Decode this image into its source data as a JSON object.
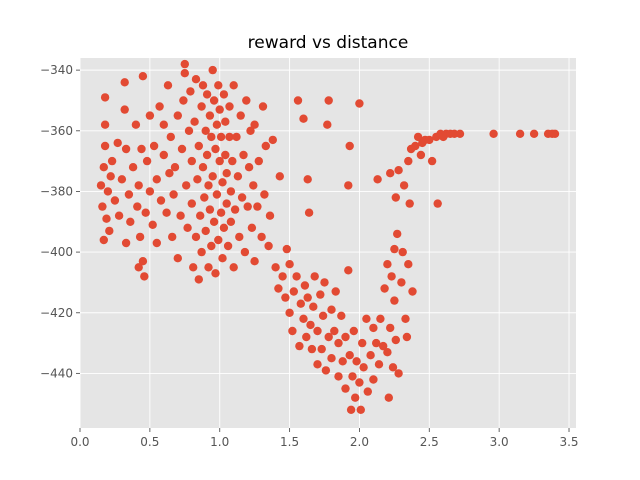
{
  "chart_data": {
    "type": "scatter",
    "title": "reward vs distance",
    "xlabel": "",
    "ylabel": "",
    "xlim": [
      0.0,
      3.55
    ],
    "ylim": [
      -458,
      -336
    ],
    "xticks": [
      0.0,
      0.5,
      1.0,
      1.5,
      2.0,
      2.5,
      3.0,
      3.5
    ],
    "xtick_labels": [
      "0.0",
      "0.5",
      "1.0",
      "1.5",
      "2.0",
      "2.5",
      "3.0",
      "3.5"
    ],
    "yticks": [
      -440,
      -420,
      -400,
      -380,
      -360,
      -340
    ],
    "ytick_labels": [
      "−440",
      "−420",
      "−400",
      "−380",
      "−360",
      "−340"
    ],
    "grid": true,
    "legend": "none",
    "colors": {
      "background": "#e5e5e5",
      "grid": "#ffffff",
      "marker": "#e24a33"
    },
    "series": [
      {
        "name": "",
        "points": [
          [
            0.15,
            -378
          ],
          [
            0.16,
            -385
          ],
          [
            0.17,
            -396
          ],
          [
            0.17,
            -372
          ],
          [
            0.18,
            -349
          ],
          [
            0.18,
            -358
          ],
          [
            0.18,
            -365
          ],
          [
            0.19,
            -389
          ],
          [
            0.2,
            -380
          ],
          [
            0.21,
            -393
          ],
          [
            0.22,
            -375
          ],
          [
            0.23,
            -370
          ],
          [
            0.25,
            -383
          ],
          [
            0.27,
            -364
          ],
          [
            0.28,
            -388
          ],
          [
            0.3,
            -376
          ],
          [
            0.32,
            -344
          ],
          [
            0.32,
            -353
          ],
          [
            0.33,
            -366
          ],
          [
            0.33,
            -397
          ],
          [
            0.35,
            -381
          ],
          [
            0.36,
            -390
          ],
          [
            0.38,
            -372
          ],
          [
            0.4,
            -358
          ],
          [
            0.41,
            -385
          ],
          [
            0.42,
            -405
          ],
          [
            0.42,
            -378
          ],
          [
            0.43,
            -395
          ],
          [
            0.44,
            -366
          ],
          [
            0.45,
            -342
          ],
          [
            0.45,
            -403
          ],
          [
            0.46,
            -408
          ],
          [
            0.47,
            -387
          ],
          [
            0.48,
            -370
          ],
          [
            0.5,
            -355
          ],
          [
            0.5,
            -380
          ],
          [
            0.52,
            -391
          ],
          [
            0.53,
            -365
          ],
          [
            0.55,
            -397
          ],
          [
            0.55,
            -376
          ],
          [
            0.57,
            -352
          ],
          [
            0.58,
            -383
          ],
          [
            0.6,
            -368
          ],
          [
            0.6,
            -358
          ],
          [
            0.62,
            -387
          ],
          [
            0.63,
            -345
          ],
          [
            0.64,
            -374
          ],
          [
            0.65,
            -362
          ],
          [
            0.66,
            -395
          ],
          [
            0.67,
            -381
          ],
          [
            0.68,
            -372
          ],
          [
            0.7,
            -355
          ],
          [
            0.7,
            -402
          ],
          [
            0.72,
            -388
          ],
          [
            0.73,
            -366
          ],
          [
            0.74,
            -350
          ],
          [
            0.75,
            -338
          ],
          [
            0.75,
            -341
          ],
          [
            0.76,
            -378
          ],
          [
            0.77,
            -392
          ],
          [
            0.78,
            -360
          ],
          [
            0.79,
            -347
          ],
          [
            0.8,
            -384
          ],
          [
            0.8,
            -370
          ],
          [
            0.81,
            -405
          ],
          [
            0.82,
            -357
          ],
          [
            0.83,
            -395
          ],
          [
            0.83,
            -343
          ],
          [
            0.84,
            -376
          ],
          [
            0.85,
            -409
          ],
          [
            0.85,
            -365
          ],
          [
            0.86,
            -388
          ],
          [
            0.87,
            -352
          ],
          [
            0.87,
            -400
          ],
          [
            0.88,
            -372
          ],
          [
            0.88,
            -345
          ],
          [
            0.89,
            -382
          ],
          [
            0.9,
            -360
          ],
          [
            0.9,
            -393
          ],
          [
            0.91,
            -368
          ],
          [
            0.91,
            -348
          ],
          [
            0.92,
            -405
          ],
          [
            0.92,
            -378
          ],
          [
            0.93,
            -355
          ],
          [
            0.93,
            -386
          ],
          [
            0.94,
            -362
          ],
          [
            0.94,
            -398
          ],
          [
            0.95,
            -340
          ],
          [
            0.95,
            -375
          ],
          [
            0.96,
            -350
          ],
          [
            0.96,
            -390
          ],
          [
            0.97,
            -366
          ],
          [
            0.97,
            -407
          ],
          [
            0.98,
            -358
          ],
          [
            0.98,
            -381
          ],
          [
            0.99,
            -345
          ],
          [
            0.99,
            -396
          ],
          [
            1.0,
            -370
          ],
          [
            1.0,
            -353
          ],
          [
            1.01,
            -387
          ],
          [
            1.01,
            -362
          ],
          [
            1.02,
            -402
          ],
          [
            1.02,
            -377
          ],
          [
            1.03,
            -348
          ],
          [
            1.03,
            -392
          ],
          [
            1.04,
            -368
          ],
          [
            1.04,
            -357
          ],
          [
            1.05,
            -384
          ],
          [
            1.05,
            -374
          ],
          [
            1.06,
            -398
          ],
          [
            1.07,
            -362
          ],
          [
            1.07,
            -352
          ],
          [
            1.08,
            -380
          ],
          [
            1.08,
            -390
          ],
          [
            1.09,
            -370
          ],
          [
            1.1,
            -405
          ],
          [
            1.1,
            -345
          ],
          [
            1.11,
            -386
          ],
          [
            1.12,
            -362
          ],
          [
            1.13,
            -375
          ],
          [
            1.14,
            -395
          ],
          [
            1.15,
            -355
          ],
          [
            1.16,
            -382
          ],
          [
            1.17,
            -368
          ],
          [
            1.18,
            -400
          ],
          [
            1.19,
            -350
          ],
          [
            1.2,
            -385
          ],
          [
            1.21,
            -372
          ],
          [
            1.22,
            -360
          ],
          [
            1.23,
            -392
          ],
          [
            1.24,
            -378
          ],
          [
            1.25,
            -403
          ],
          [
            1.25,
            -358
          ],
          [
            1.27,
            -385
          ],
          [
            1.28,
            -370
          ],
          [
            1.3,
            -395
          ],
          [
            1.31,
            -352
          ],
          [
            1.32,
            -381
          ],
          [
            1.33,
            -365
          ],
          [
            1.35,
            -398
          ],
          [
            1.36,
            -388
          ],
          [
            1.38,
            -363
          ],
          [
            1.4,
            -405
          ],
          [
            1.42,
            -412
          ],
          [
            1.43,
            -375
          ],
          [
            1.45,
            -408
          ],
          [
            1.47,
            -415
          ],
          [
            1.48,
            -399
          ],
          [
            1.5,
            -420
          ],
          [
            1.5,
            -404
          ],
          [
            1.52,
            -426
          ],
          [
            1.53,
            -413
          ],
          [
            1.55,
            -408
          ],
          [
            1.56,
            -350
          ],
          [
            1.57,
            -431
          ],
          [
            1.58,
            -417
          ],
          [
            1.6,
            -356
          ],
          [
            1.6,
            -422
          ],
          [
            1.61,
            -411
          ],
          [
            1.62,
            -428
          ],
          [
            1.63,
            -376
          ],
          [
            1.63,
            -415
          ],
          [
            1.64,
            -387
          ],
          [
            1.65,
            -424
          ],
          [
            1.66,
            -432
          ],
          [
            1.67,
            -418
          ],
          [
            1.68,
            -408
          ],
          [
            1.7,
            -437
          ],
          [
            1.7,
            -426
          ],
          [
            1.72,
            -414
          ],
          [
            1.73,
            -432
          ],
          [
            1.74,
            -421
          ],
          [
            1.75,
            -410
          ],
          [
            1.76,
            -439
          ],
          [
            1.77,
            -358
          ],
          [
            1.78,
            -428
          ],
          [
            1.78,
            -350
          ],
          [
            1.8,
            -419
          ],
          [
            1.8,
            -435
          ],
          [
            1.82,
            -426
          ],
          [
            1.83,
            -413
          ],
          [
            1.85,
            -441
          ],
          [
            1.85,
            -430
          ],
          [
            1.87,
            -421
          ],
          [
            1.88,
            -436
          ],
          [
            1.9,
            -445
          ],
          [
            1.9,
            -428
          ],
          [
            1.92,
            -406
          ],
          [
            1.92,
            -378
          ],
          [
            1.93,
            -365
          ],
          [
            1.93,
            -434
          ],
          [
            1.94,
            -452
          ],
          [
            1.95,
            -441
          ],
          [
            1.96,
            -426
          ],
          [
            1.97,
            -448
          ],
          [
            1.98,
            -436
          ],
          [
            2.0,
            -443
          ],
          [
            2.0,
            -351
          ],
          [
            2.01,
            -452
          ],
          [
            2.02,
            -430
          ],
          [
            2.03,
            -438
          ],
          [
            2.05,
            -422
          ],
          [
            2.06,
            -446
          ],
          [
            2.08,
            -434
          ],
          [
            2.1,
            -442
          ],
          [
            2.1,
            -425
          ],
          [
            2.12,
            -430
          ],
          [
            2.13,
            -376
          ],
          [
            2.14,
            -437
          ],
          [
            2.15,
            -422
          ],
          [
            2.17,
            -431
          ],
          [
            2.18,
            -412
          ],
          [
            2.2,
            -404
          ],
          [
            2.2,
            -433
          ],
          [
            2.21,
            -448
          ],
          [
            2.22,
            -374
          ],
          [
            2.22,
            -425
          ],
          [
            2.23,
            -408
          ],
          [
            2.24,
            -438
          ],
          [
            2.25,
            -399
          ],
          [
            2.25,
            -416
          ],
          [
            2.26,
            -382
          ],
          [
            2.26,
            -429
          ],
          [
            2.27,
            -394
          ],
          [
            2.28,
            -373
          ],
          [
            2.28,
            -440
          ],
          [
            2.3,
            -410
          ],
          [
            2.31,
            -400
          ],
          [
            2.32,
            -378
          ],
          [
            2.33,
            -422
          ],
          [
            2.34,
            -428
          ],
          [
            2.35,
            -404
          ],
          [
            2.35,
            -370
          ],
          [
            2.36,
            -384
          ],
          [
            2.37,
            -366
          ],
          [
            2.38,
            -413
          ],
          [
            2.4,
            -365
          ],
          [
            2.42,
            -362
          ],
          [
            2.44,
            -368
          ],
          [
            2.45,
            -364
          ],
          [
            2.47,
            -363
          ],
          [
            2.5,
            -363
          ],
          [
            2.52,
            -370
          ],
          [
            2.55,
            -362
          ],
          [
            2.56,
            -384
          ],
          [
            2.58,
            -361
          ],
          [
            2.6,
            -362
          ],
          [
            2.62,
            -361
          ],
          [
            2.65,
            -361
          ],
          [
            2.68,
            -361
          ],
          [
            2.72,
            -361
          ],
          [
            2.96,
            -361
          ],
          [
            3.15,
            -361
          ],
          [
            3.25,
            -361
          ],
          [
            3.35,
            -361
          ],
          [
            3.38,
            -361
          ],
          [
            3.4,
            -361
          ]
        ]
      }
    ]
  }
}
